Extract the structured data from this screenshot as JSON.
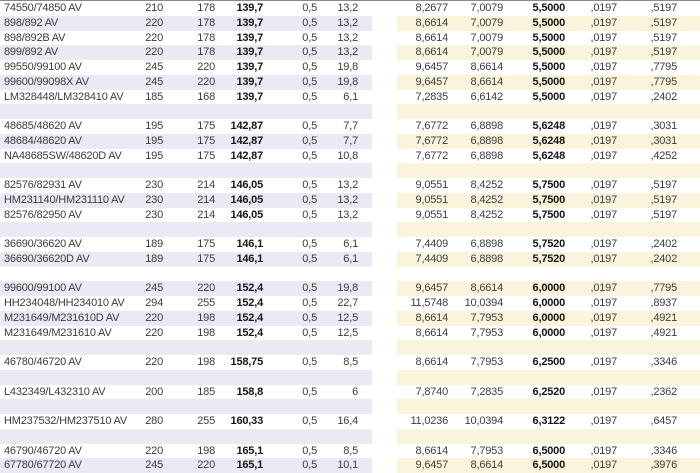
{
  "colors": {
    "row_alt_metric": "#e9eaf3",
    "row_alt_inch": "#fbf4dc",
    "text": "#3d3d3d",
    "text_bold": "#161616",
    "top_border": "#8a8a8a"
  },
  "table": {
    "description": "tapered-roller-bearing-catalog-dimension-table",
    "rows": [
      {
        "cells": [
          "74550/74850 AV",
          "210",
          "178",
          "139,7",
          "0,5",
          "13,2",
          "8,2677",
          "7,0079",
          "5,5000",
          ",0197",
          ",5197"
        ]
      },
      {
        "cells": [
          "898/892 AV",
          "220",
          "178",
          "139,7",
          "0,5",
          "13,2",
          "8,6614",
          "7,0079",
          "5,5000",
          ",0197",
          ",5197"
        ]
      },
      {
        "cells": [
          "898/892B AV",
          "220",
          "178",
          "139,7",
          "0,5",
          "13,2",
          "8,6614",
          "7,0079",
          "5,5000",
          ",0197",
          ",5197"
        ]
      },
      {
        "cells": [
          "899/892 AV",
          "220",
          "178",
          "139,7",
          "0,5",
          "13,2",
          "8,6614",
          "7,0079",
          "5,5000",
          ",0197",
          ",5197"
        ]
      },
      {
        "cells": [
          "99550/99100 AV",
          "245",
          "220",
          "139,7",
          "0,5",
          "19,8",
          "9,6457",
          "8,6614",
          "5,5000",
          ",0197",
          ",7795"
        ]
      },
      {
        "cells": [
          "99600/99098X AV",
          "245",
          "220",
          "139,7",
          "0,5",
          "19,8",
          "9,6457",
          "8,6614",
          "5,5000",
          ",0197",
          ",7795"
        ]
      },
      {
        "cells": [
          "LM328448/LM328410 AV",
          "185",
          "168",
          "139,7",
          "0,5",
          "6,1",
          "7,2835",
          "6,6142",
          "5,5000",
          ",0197",
          ",2402"
        ]
      },
      {
        "cells": []
      },
      {
        "cells": [
          "48685/48620 AV",
          "195",
          "175",
          "142,87",
          "0,5",
          "7,7",
          "7,6772",
          "6,8898",
          "5,6248",
          ",0197",
          ",3031"
        ]
      },
      {
        "cells": [
          "48684/48620 AV",
          "195",
          "175",
          "142,87",
          "0,5",
          "7,7",
          "7,6772",
          "6,8898",
          "5,6248",
          ",0197",
          ",3031"
        ]
      },
      {
        "cells": [
          "NA48685SW/48620D AV",
          "195",
          "175",
          "142,87",
          "0,5",
          "10,8",
          "7,6772",
          "6,8898",
          "5,6248",
          ",0197",
          ",4252"
        ]
      },
      {
        "cells": []
      },
      {
        "cells": [
          "82576/82931 AV",
          "230",
          "214",
          "146,05",
          "0,5",
          "13,2",
          "9,0551",
          "8,4252",
          "5,7500",
          ",0197",
          ",5197"
        ]
      },
      {
        "cells": [
          "HM231140/HM231110 AV",
          "230",
          "214",
          "146,05",
          "0,5",
          "13,2",
          "9,0551",
          "8,4252",
          "5,7500",
          ",0197",
          ",5197"
        ]
      },
      {
        "cells": [
          "82576/82950 AV",
          "230",
          "214",
          "146,05",
          "0,5",
          "13,2",
          "9,0551",
          "8,4252",
          "5,7500",
          ",0197",
          ",5197"
        ]
      },
      {
        "cells": []
      },
      {
        "cells": [
          "36690/36620 AV",
          "189",
          "175",
          "146,1",
          "0,5",
          "6,1",
          "7,4409",
          "6,8898",
          "5,7520",
          ",0197",
          ",2402"
        ]
      },
      {
        "cells": [
          "36690/36620D AV",
          "189",
          "175",
          "146,1",
          "0,5",
          "6,1",
          "7,4409",
          "6,8898",
          "5,7520",
          ",0197",
          ",2402"
        ]
      },
      {
        "cells": []
      },
      {
        "cells": [
          "99600/99100 AV",
          "245",
          "220",
          "152,4",
          "0,5",
          "19,8",
          "9,6457",
          "8,6614",
          "6,0000",
          ",0197",
          ",7795"
        ]
      },
      {
        "cells": [
          "HH234048/HH234010 AV",
          "294",
          "255",
          "152,4",
          "0,5",
          "22,7",
          "11,5748",
          "10,0394",
          "6,0000",
          ",0197",
          ",8937"
        ]
      },
      {
        "cells": [
          "M231649/M231610D AV",
          "220",
          "198",
          "152,4",
          "0,5",
          "12,5",
          "8,6614",
          "7,7953",
          "6,0000",
          ",0197",
          ",4921"
        ]
      },
      {
        "cells": [
          "M231649/M231610 AV",
          "220",
          "198",
          "152,4",
          "0,5",
          "12,5",
          "8,6614",
          "7,7953",
          "6,0000",
          ",0197",
          ",4921"
        ]
      },
      {
        "cells": []
      },
      {
        "cells": [
          "46780/46720 AV",
          "220",
          "198",
          "158,75",
          "0,5",
          "8,5",
          "8,6614",
          "7,7953",
          "6,2500",
          ",0197",
          ",3346"
        ]
      },
      {
        "cells": []
      },
      {
        "cells": [
          "L432349/L432310 AV",
          "200",
          "185",
          "158,8",
          "0,5",
          "6",
          "7,8740",
          "7,2835",
          "6,2520",
          ",0197",
          ",2362"
        ]
      },
      {
        "cells": []
      },
      {
        "cells": [
          "HM237532/HM237510 AV",
          "280",
          "255",
          "160,33",
          "0,5",
          "16,4",
          "11,0236",
          "10,0394",
          "6,3122",
          ",0197",
          ",6457"
        ]
      },
      {
        "cells": []
      },
      {
        "cells": [
          "46790/46720 AV",
          "220",
          "198",
          "165,1",
          "0,5",
          "8,5",
          "8,6614",
          "7,7953",
          "6,5000",
          ",0197",
          ",3346"
        ]
      },
      {
        "cells": [
          "67780/67720 AV",
          "245",
          "220",
          "165,1",
          "0,5",
          "10,1",
          "9,6457",
          "8,6614",
          "6,5000",
          ",0197",
          ",3976"
        ]
      }
    ]
  }
}
